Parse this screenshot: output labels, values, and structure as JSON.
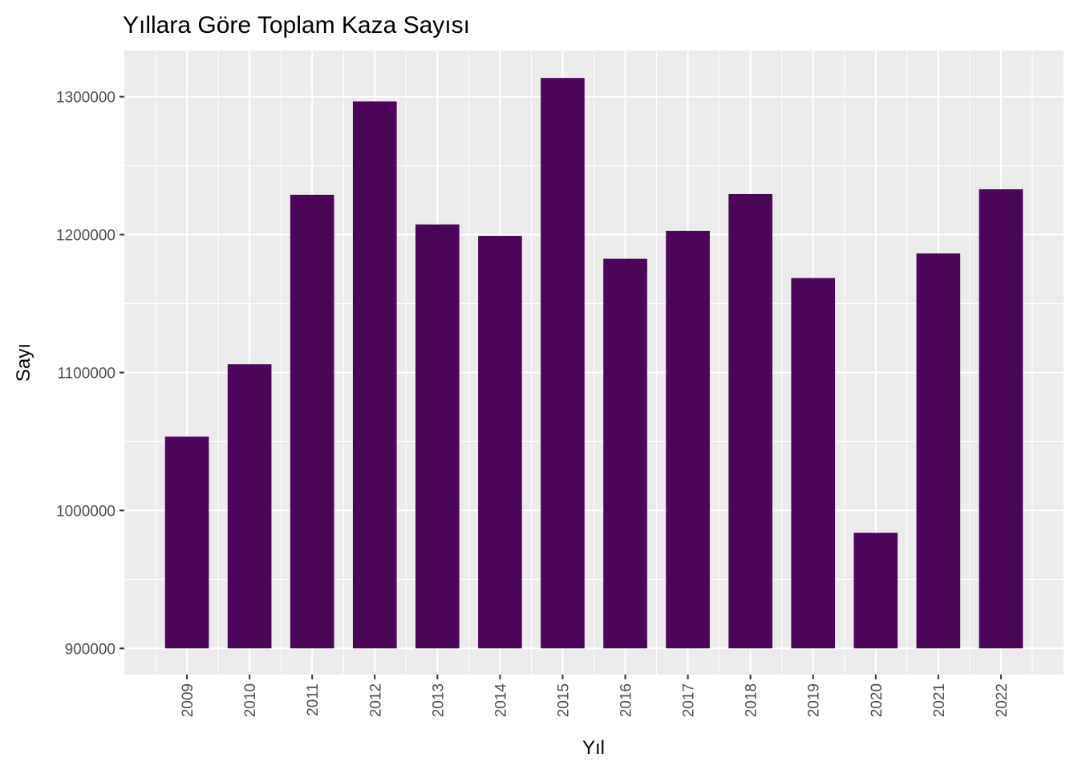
{
  "chart_data": {
    "type": "bar",
    "title": "Yıllara Göre Toplam Kaza Sayısı",
    "xlabel": "Yıl",
    "ylabel": "Sayı",
    "categories": [
      "2009",
      "2010",
      "2011",
      "2012",
      "2013",
      "2014",
      "2015",
      "2016",
      "2017",
      "2018",
      "2019",
      "2020",
      "2021",
      "2022"
    ],
    "values": [
      1053500,
      1106000,
      1228900,
      1296600,
      1207400,
      1199100,
      1313600,
      1182500,
      1202700,
      1229400,
      1168500,
      983800,
      1186400,
      1232900
    ],
    "ylim": [
      881000,
      1333500
    ],
    "yticks": [
      900000,
      1000000,
      1100000,
      1200000,
      1300000
    ],
    "ytick_labels": [
      "900000",
      "1000000",
      "1100000",
      "1200000",
      "1300000"
    ],
    "bar_baseline": 900000,
    "bar_color": "#4b0659",
    "panel_background": "#ebebeb",
    "grid_color": "#ffffff",
    "grid": true,
    "legend": "none"
  }
}
